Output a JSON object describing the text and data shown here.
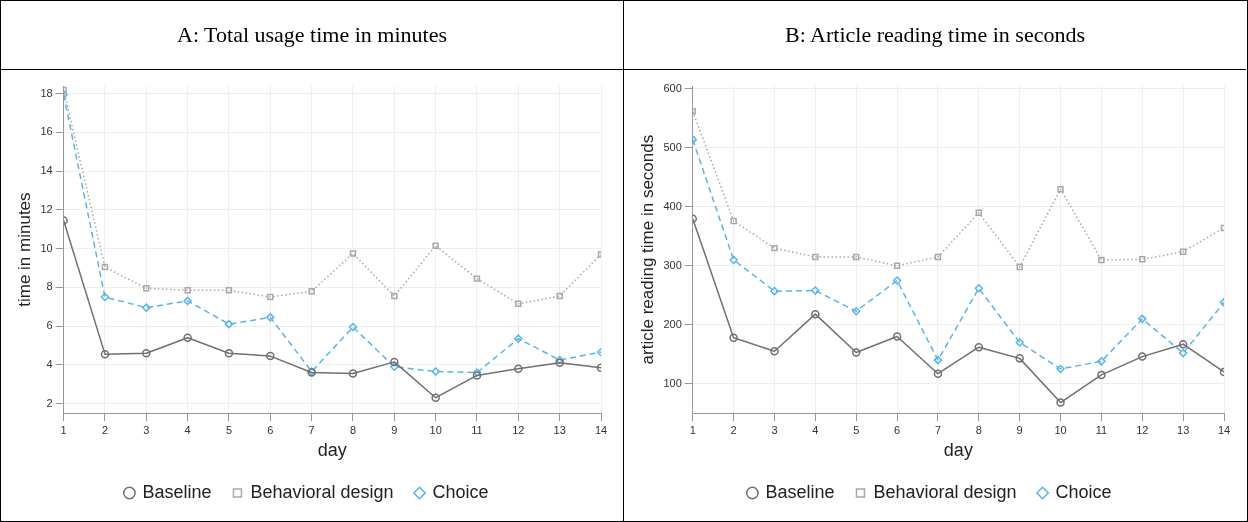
{
  "chart_data": [
    {
      "type": "line",
      "title": "A: Total usage time in minutes",
      "xlabel": "day",
      "ylabel": "time in minutes",
      "x": [
        1,
        2,
        3,
        4,
        5,
        6,
        7,
        8,
        9,
        10,
        11,
        12,
        13,
        14
      ],
      "xlim": [
        1,
        14
      ],
      "xticks": [
        1,
        2,
        3,
        4,
        5,
        6,
        7,
        8,
        9,
        10,
        11,
        12,
        13,
        14
      ],
      "ylim": [
        1.5,
        18.4
      ],
      "yticks": [
        2,
        4,
        6,
        8,
        10,
        12,
        14,
        16,
        18
      ],
      "grid": true,
      "legend": "bottom",
      "series": [
        {
          "name": "Baseline",
          "color": "#707070",
          "marker": "circle",
          "line_style": "solid",
          "values": [
            11.45,
            4.55,
            4.6,
            5.4,
            4.6,
            4.45,
            3.6,
            3.55,
            4.15,
            2.3,
            3.45,
            3.8,
            4.1,
            3.85
          ]
        },
        {
          "name": "Behavioral design",
          "color": "#a8a8a8",
          "marker": "square",
          "line_style": "dotted",
          "values": [
            18.2,
            9.05,
            7.95,
            7.85,
            7.85,
            7.5,
            7.8,
            9.75,
            7.55,
            10.15,
            8.45,
            7.15,
            7.55,
            9.7
          ]
        },
        {
          "name": "Choice",
          "color": "#5ab4e6",
          "marker": "diamond",
          "line_style": "dashed",
          "values": [
            17.95,
            7.5,
            6.95,
            7.3,
            6.1,
            6.45,
            3.65,
            5.95,
            3.9,
            3.65,
            3.6,
            5.35,
            4.25,
            4.65
          ]
        }
      ]
    },
    {
      "type": "line",
      "title": "B: Article reading time in seconds",
      "xlabel": "day",
      "ylabel": "article reading time in seconds",
      "x": [
        1,
        2,
        3,
        4,
        5,
        6,
        7,
        8,
        9,
        10,
        11,
        12,
        13,
        14
      ],
      "xlim": [
        1,
        14
      ],
      "xticks": [
        1,
        2,
        3,
        4,
        5,
        6,
        7,
        8,
        9,
        10,
        11,
        12,
        13,
        14
      ],
      "ylim": [
        50,
        605
      ],
      "yticks": [
        100,
        200,
        300,
        400,
        500,
        600
      ],
      "grid": true,
      "legend": "bottom",
      "series": [
        {
          "name": "Baseline",
          "color": "#707070",
          "marker": "circle",
          "line_style": "solid",
          "values": [
            380,
            178,
            155,
            218,
            153,
            180,
            117,
            162,
            143,
            68,
            115,
            146,
            167,
            120
          ]
        },
        {
          "name": "Behavioral design",
          "color": "#a8a8a8",
          "marker": "square",
          "line_style": "dotted",
          "values": [
            562,
            376,
            330,
            315,
            315,
            300,
            315,
            390,
            298,
            430,
            310,
            311,
            324,
            364
          ]
        },
        {
          "name": "Choice",
          "color": "#5ab4e6",
          "marker": "diamond",
          "line_style": "dashed",
          "values": [
            514,
            310,
            257,
            258,
            223,
            275,
            140,
            262,
            170,
            125,
            138,
            210,
            152,
            238
          ]
        }
      ]
    }
  ]
}
